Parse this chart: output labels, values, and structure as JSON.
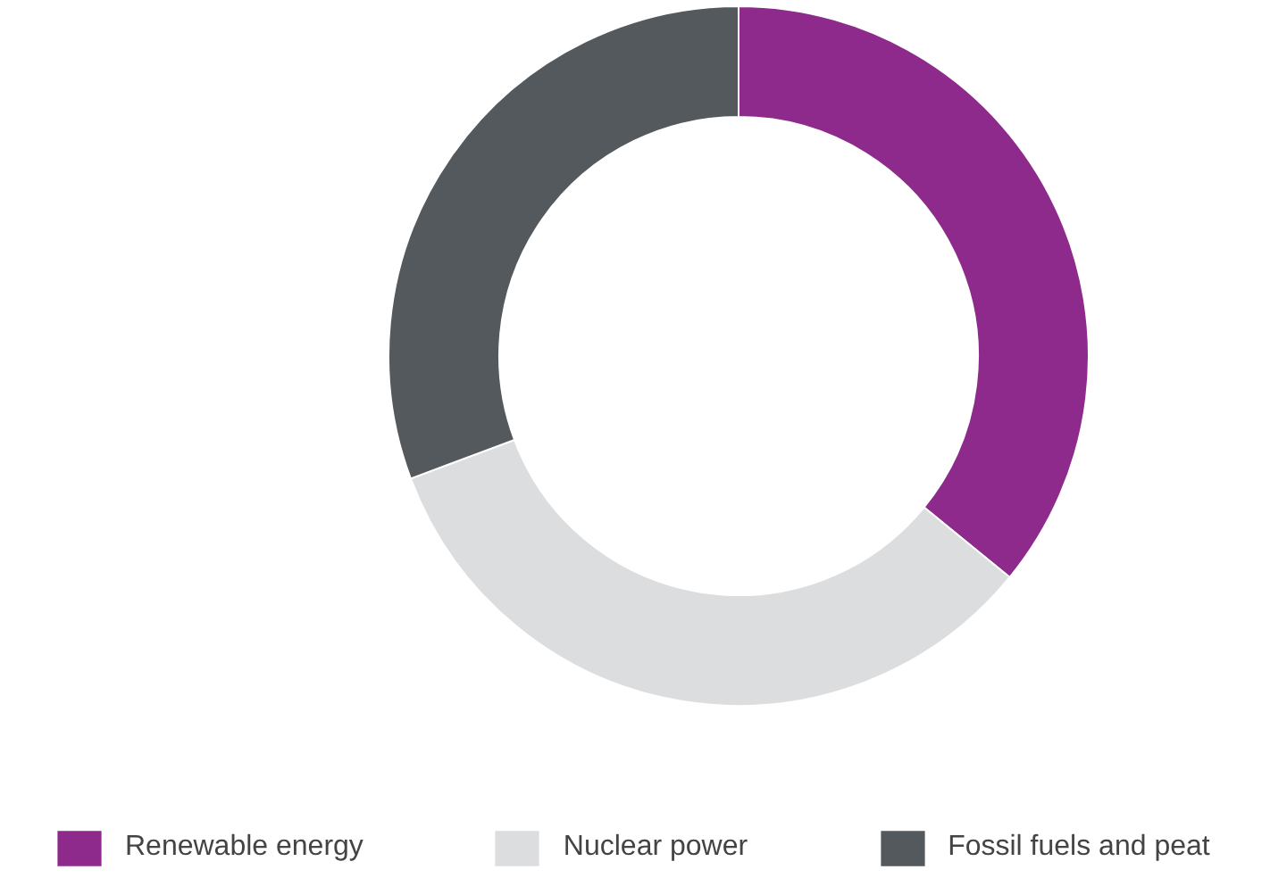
{
  "chart_data": {
    "type": "donut",
    "categories": [
      "Renewable energy",
      "Nuclear power",
      "Fossil fuels and peat"
    ],
    "values": [
      35.9,
      33.4,
      30.7
    ],
    "colors": [
      "#8e2a8c",
      "#dcdddf",
      "#54595d"
    ],
    "legend": "bottom"
  }
}
